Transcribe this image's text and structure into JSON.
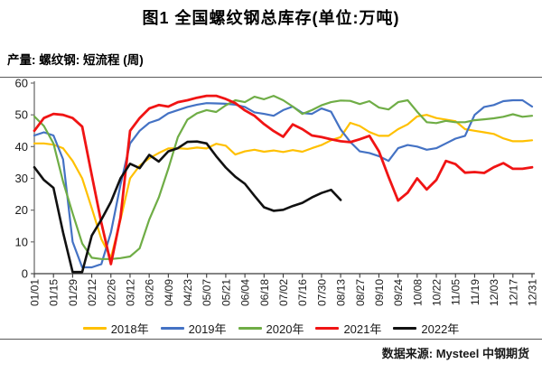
{
  "title": "图1 全国螺纹钢总库存(单位:万吨)",
  "subtitle": "产量: 螺纹钢: 短流程 (周)",
  "source": "数据来源: Mysteel 中钢期货",
  "chart_data": {
    "type": "line",
    "title": "图1 全国螺纹钢总库存(单位:万吨)",
    "caption": "产量: 螺纹钢: 短流程 (周)",
    "grid": false,
    "legend_position": "bottom",
    "ylim": [
      0,
      60
    ],
    "y_tick_labels": [
      "0",
      "10",
      "20",
      "30",
      "40",
      "50",
      "60"
    ],
    "x_tick_labels": [
      "01/01",
      "01/15",
      "01/29",
      "02/12",
      "02/26",
      "03/12",
      "03/26",
      "04/09",
      "04/23",
      "05/07",
      "05/21",
      "06/04",
      "06/18",
      "07/02",
      "07/16",
      "07/30",
      "08/13",
      "08/27",
      "09/10",
      "09/24",
      "10/08",
      "10/22",
      "11/05",
      "11/19",
      "12/03",
      "12/17",
      "12/31"
    ],
    "sampling": "weekly points; x tick labels mark every second point",
    "series": [
      {
        "name": "2018年",
        "color": "#FFC000",
        "width": 2.2,
        "values": [
          41,
          41,
          40.6,
          39.5,
          35.5,
          30,
          20.6,
          10.9,
          5,
          17,
          30,
          34,
          36.3,
          38,
          39.4,
          39.5,
          39.3,
          39.7,
          39.4,
          40.9,
          40.3,
          37.5,
          38.5,
          39,
          38.4,
          38.8,
          38.3,
          38.9,
          38.4,
          39.5,
          40.5,
          42,
          43,
          47.5,
          46.5,
          44.6,
          43.4,
          43.4,
          45.5,
          47,
          49.5,
          50,
          49,
          48.5,
          48,
          45.5,
          45,
          44.5,
          44,
          42.6,
          41.7,
          41.7,
          42
        ]
      },
      {
        "name": "2019年",
        "color": "#4472C4",
        "width": 2.2,
        "values": [
          43.5,
          44.5,
          43.5,
          36,
          10,
          2,
          2,
          3,
          13,
          28,
          41,
          45,
          47.5,
          48.5,
          50.5,
          51.5,
          52.5,
          53.2,
          53.7,
          53.6,
          53.5,
          53.2,
          52.5,
          50.8,
          50.3,
          49.7,
          51.5,
          52.6,
          50.6,
          50.3,
          52,
          51,
          45.4,
          41.5,
          38.5,
          38,
          37,
          35.5,
          39.5,
          40.5,
          40,
          39,
          39.5,
          41,
          42.5,
          43.4,
          50,
          52.5,
          53.1,
          54.3,
          54.6,
          54.6,
          52.6
        ]
      },
      {
        "name": "2020年",
        "color": "#6FAD46",
        "width": 2.2,
        "values": [
          49.5,
          46.5,
          41,
          29,
          19,
          9.5,
          5,
          4.6,
          4.6,
          4.9,
          5.4,
          8,
          17,
          24,
          33,
          43,
          48.5,
          50.5,
          51.5,
          50.9,
          53,
          54.6,
          54,
          55.7,
          54.9,
          56,
          54.6,
          52.6,
          50.3,
          51.5,
          53,
          54,
          54.5,
          54.4,
          53.4,
          54.3,
          52.3,
          51.7,
          54,
          54.6,
          51,
          47.7,
          47.4,
          48.1,
          47.7,
          47.7,
          48.3,
          48.6,
          48.9,
          49.4,
          50.2,
          49.4,
          49.7
        ]
      },
      {
        "name": "2021年",
        "color": "#F01414",
        "width": 2.8,
        "values": [
          45,
          49,
          50.3,
          50,
          49,
          46.3,
          31,
          16,
          3,
          17.7,
          45,
          49,
          52,
          53.1,
          52.6,
          54,
          54.6,
          55.4,
          56,
          56,
          55,
          53.7,
          51.4,
          49.7,
          47.1,
          44.9,
          43.1,
          47,
          45.5,
          43.5,
          43,
          42.3,
          41.7,
          41.4,
          42.3,
          43.4,
          38.5,
          30.5,
          23,
          25.5,
          30,
          26.5,
          29.5,
          35.5,
          34.5,
          31.8,
          32,
          31.7,
          33.5,
          34.8,
          33,
          33,
          33.5
        ]
      },
      {
        "name": "2022年",
        "color": "#111111",
        "width": 2.6,
        "values": [
          33.5,
          29.5,
          27,
          13,
          0.5,
          0.5,
          12,
          17,
          22.6,
          30,
          34.6,
          33.2,
          37.4,
          35.3,
          38.5,
          39.5,
          41.5,
          41.6,
          41,
          37,
          33.4,
          30.5,
          28.3,
          24.5,
          20.9,
          19.8,
          20.1,
          21.3,
          22.3,
          24,
          25.4,
          26.4,
          23.2,
          null,
          null,
          null,
          null,
          null,
          null,
          null,
          null,
          null,
          null,
          null,
          null,
          null,
          null,
          null,
          null,
          null,
          null,
          null,
          null
        ]
      }
    ]
  }
}
